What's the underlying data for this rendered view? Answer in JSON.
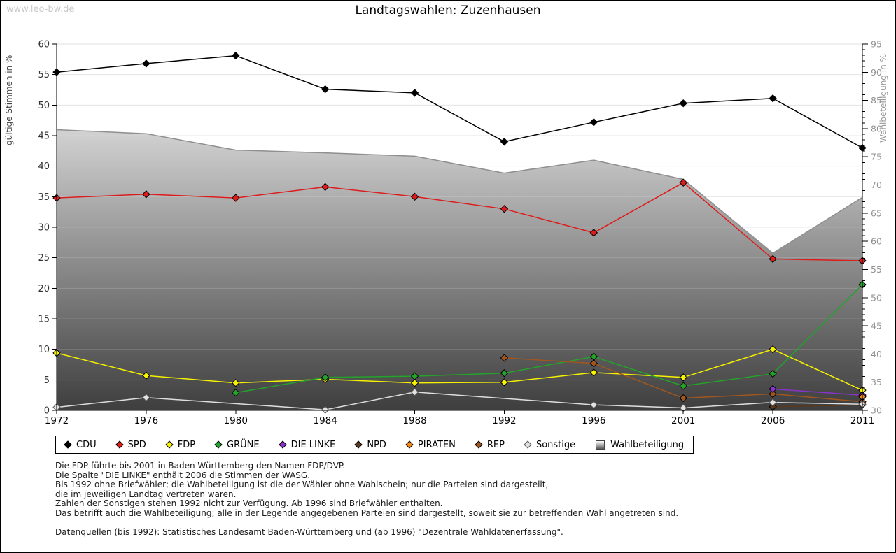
{
  "watermark": "www.leo-bw.de",
  "title": "Landtagswahlen: Zuzenhausen",
  "chart_data": {
    "type": "line",
    "title": "Landtagswahlen: Zuzenhausen",
    "categories": [
      1972,
      1976,
      1980,
      1984,
      1988,
      1992,
      1996,
      2001,
      2006,
      2011
    ],
    "y_left": {
      "label": "gültige Stimmen in %",
      "min": 0,
      "max": 60,
      "step": 5
    },
    "y_right": {
      "label": "Wahlbeteiligung in %",
      "min": 30,
      "max": 95,
      "step": 5
    },
    "grid": true,
    "legend_position": "bottom",
    "series": [
      {
        "name": "CDU",
        "color": "#000000",
        "axis": "left",
        "values": [
          55.4,
          56.8,
          58.1,
          52.6,
          52.0,
          44.0,
          47.2,
          50.3,
          51.1,
          43.0
        ]
      },
      {
        "name": "SPD",
        "color": "#dd1c1c",
        "axis": "left",
        "values": [
          34.8,
          35.4,
          34.8,
          36.6,
          35.0,
          33.0,
          29.1,
          37.3,
          24.8,
          24.5
        ]
      },
      {
        "name": "FDP",
        "color": "#f6f200",
        "axis": "left",
        "values": [
          9.4,
          5.7,
          4.5,
          5.1,
          4.5,
          4.6,
          6.2,
          5.4,
          10.0,
          3.3
        ]
      },
      {
        "name": "GRÜNE",
        "color": "#23a32a",
        "axis": "left",
        "values": [
          null,
          null,
          2.9,
          5.4,
          5.6,
          6.1,
          8.8,
          4.0,
          6.0,
          20.6
        ]
      },
      {
        "name": "DIE LINKE",
        "color": "#8a33cc",
        "axis": "left",
        "values": [
          null,
          null,
          null,
          null,
          null,
          null,
          null,
          null,
          3.5,
          2.5
        ]
      },
      {
        "name": "NPD",
        "color": "#59391d",
        "axis": "left",
        "values": [
          null,
          null,
          null,
          null,
          null,
          null,
          null,
          null,
          0.6,
          0.9
        ]
      },
      {
        "name": "PIRATEN",
        "color": "#f28a14",
        "axis": "left",
        "values": [
          null,
          null,
          null,
          null,
          null,
          null,
          null,
          null,
          null,
          2.2
        ]
      },
      {
        "name": "REP",
        "color": "#a0561f",
        "axis": "left",
        "values": [
          null,
          null,
          null,
          null,
          null,
          8.6,
          7.7,
          2.0,
          2.7,
          1.4
        ]
      },
      {
        "name": "Sonstige",
        "color": "#e2e2e2",
        "axis": "left",
        "values": [
          0.5,
          2.1,
          null,
          0.1,
          3.0,
          null,
          0.9,
          0.4,
          1.3,
          1.0
        ]
      }
    ],
    "turnout": {
      "name": "Wahlbeteiligung",
      "axis": "right",
      "style": "area",
      "line_color": "#8f8f8f",
      "fill_top": "#ffffff",
      "fill_bottom": "#3e3e3e",
      "values": [
        79.8,
        79.1,
        76.2,
        75.7,
        75.1,
        72.1,
        74.4,
        71.0,
        57.9,
        67.8
      ]
    }
  },
  "footnotes": [
    "Die FDP führte bis 2001 in Baden-Württemberg den Namen FDP/DVP.",
    "Die Spalte \"DIE LINKE\" enthält 2006 die Stimmen der WASG.",
    "Bis 1992 ohne Briefwähler; die Wahlbeteiligung ist die der Wähler ohne Wahlschein; nur die Parteien sind dargestellt,",
    "die im jeweiligen Landtag vertreten waren.",
    "Zahlen der Sonstigen stehen 1992 nicht zur Verfügung. Ab 1996 sind Briefwähler enthalten.",
    "Das betrifft auch die Wahlbeteiligung; alle in der Legende angegebenen Parteien sind dargestellt, soweit sie zur betreffenden Wahl angetreten sind."
  ],
  "datasource": "Datenquellen (bis 1992): Statistisches Landesamt Baden-Württemberg und (ab 1996) \"Dezentrale Wahldatenerfassung\"."
}
